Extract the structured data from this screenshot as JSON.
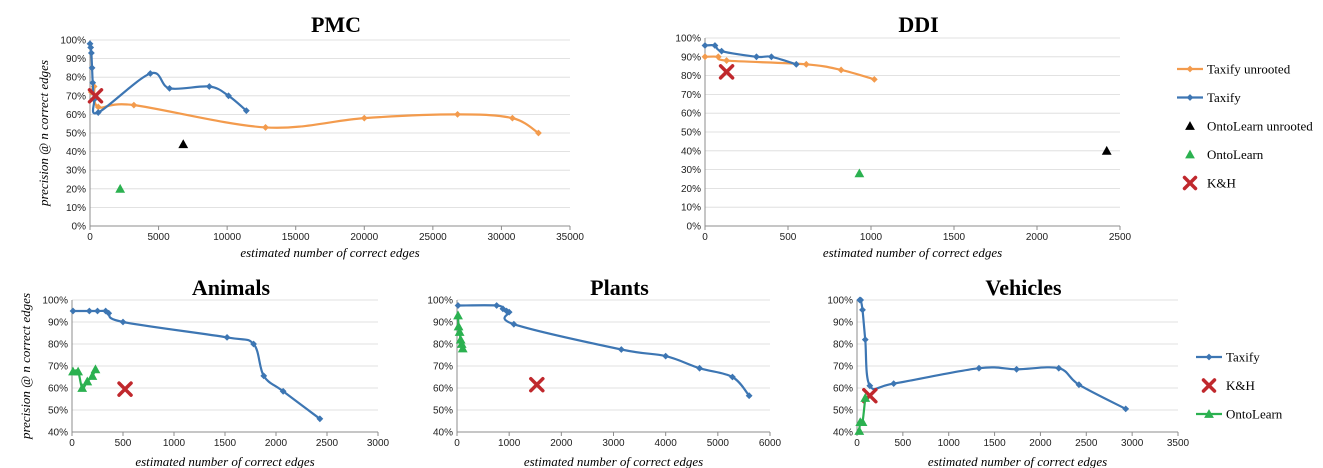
{
  "chart_data": [
    {
      "id": "pmc",
      "type": "scatter",
      "title": "PMC",
      "xlabel": "estimated number of correct edges",
      "ylabel": "precision @ n correct edges",
      "xlim": [
        0,
        35000
      ],
      "ylim": [
        0,
        1
      ],
      "xticks": [
        0,
        5000,
        10000,
        15000,
        20000,
        25000,
        30000,
        35000
      ],
      "xtick_labels": [
        "0",
        "5000",
        "10000",
        "15000",
        "20000",
        "25000",
        "30000",
        "35000"
      ],
      "yticks": [
        0,
        0.1,
        0.2,
        0.3,
        0.4,
        0.5,
        0.6,
        0.7,
        0.8,
        0.9,
        1.0
      ],
      "ytick_labels": [
        "0%",
        "10%",
        "20%",
        "30%",
        "40%",
        "50%",
        "60%",
        "70%",
        "80%",
        "90%",
        "100%"
      ],
      "series": [
        {
          "name": "Taxify unrooted",
          "color": "#f39b4d",
          "marker": "diamond",
          "line": true,
          "x": [
            100,
            300,
            600,
            3200,
            12800,
            20000,
            26800,
            30800,
            32700
          ],
          "y": [
            0.72,
            0.75,
            0.64,
            0.65,
            0.53,
            0.58,
            0.6,
            0.58,
            0.5
          ]
        },
        {
          "name": "Taxify",
          "color": "#3d76b3",
          "marker": "diamond",
          "line": true,
          "x": [
            0,
            50,
            100,
            150,
            200,
            300,
            600,
            4400,
            5800,
            8700,
            10100,
            11400
          ],
          "y": [
            0.98,
            0.96,
            0.93,
            0.85,
            0.77,
            0.68,
            0.61,
            0.82,
            0.74,
            0.75,
            0.7,
            0.62
          ]
        },
        {
          "name": "OntoLearn unrooted",
          "color": "#000000",
          "marker": "triangle",
          "line": false,
          "x": [
            6800
          ],
          "y": [
            0.44
          ]
        },
        {
          "name": "OntoLearn",
          "color": "#2bb150",
          "marker": "triangle",
          "line": false,
          "x": [
            2200
          ],
          "y": [
            0.2
          ]
        },
        {
          "name": "K&H",
          "color": "#c0282d",
          "marker": "x",
          "line": false,
          "x": [
            400
          ],
          "y": [
            0.7
          ]
        }
      ]
    },
    {
      "id": "ddi",
      "type": "scatter",
      "title": "DDI",
      "xlabel": "estimated number of correct edges",
      "ylabel": "",
      "xlim": [
        0,
        2500
      ],
      "ylim": [
        0,
        1
      ],
      "xticks": [
        0,
        500,
        1000,
        1500,
        2000,
        2500
      ],
      "xtick_labels": [
        "0",
        "500",
        "1000",
        "1500",
        "2000",
        "2500"
      ],
      "yticks": [
        0,
        0.1,
        0.2,
        0.3,
        0.4,
        0.5,
        0.6,
        0.7,
        0.8,
        0.9,
        1.0
      ],
      "ytick_labels": [
        "0%",
        "10%",
        "20%",
        "30%",
        "40%",
        "50%",
        "60%",
        "70%",
        "80%",
        "90%",
        "100%"
      ],
      "series": [
        {
          "name": "Taxify unrooted",
          "color": "#f39b4d",
          "marker": "diamond",
          "line": true,
          "x": [
            0,
            80,
            130,
            610,
            820,
            1020
          ],
          "y": [
            0.9,
            0.9,
            0.88,
            0.86,
            0.83,
            0.78
          ]
        },
        {
          "name": "Taxify",
          "color": "#3d76b3",
          "marker": "diamond",
          "line": true,
          "x": [
            0,
            60,
            100,
            310,
            400,
            550
          ],
          "y": [
            0.96,
            0.96,
            0.93,
            0.9,
            0.9,
            0.86
          ]
        },
        {
          "name": "OntoLearn unrooted",
          "color": "#000000",
          "marker": "triangle",
          "line": false,
          "x": [
            2420
          ],
          "y": [
            0.4
          ]
        },
        {
          "name": "OntoLearn",
          "color": "#2bb150",
          "marker": "triangle",
          "line": false,
          "x": [
            930
          ],
          "y": [
            0.28
          ]
        },
        {
          "name": "K&H",
          "color": "#c0282d",
          "marker": "x",
          "line": false,
          "x": [
            130
          ],
          "y": [
            0.82
          ]
        }
      ]
    },
    {
      "id": "animals",
      "type": "line",
      "title": "Animals",
      "xlabel": "estimated number of correct edges",
      "ylabel": "precision @ n correct edges",
      "xlim": [
        0,
        3000
      ],
      "ylim": [
        0.4,
        1
      ],
      "xticks": [
        0,
        500,
        1000,
        1500,
        2000,
        2500,
        3000
      ],
      "xtick_labels": [
        "0",
        "500",
        "1000",
        "1500",
        "2000",
        "2500",
        "3000"
      ],
      "yticks": [
        0.4,
        0.5,
        0.6,
        0.7,
        0.8,
        0.9,
        1.0
      ],
      "ytick_labels": [
        "40%",
        "50%",
        "60%",
        "70%",
        "80%",
        "90%",
        "100%"
      ],
      "series": [
        {
          "name": "Taxify",
          "color": "#3d76b3",
          "marker": "diamond",
          "line": true,
          "x": [
            10,
            170,
            250,
            330,
            360,
            500,
            1520,
            1780,
            1880,
            2070,
            2430
          ],
          "y": [
            0.95,
            0.95,
            0.95,
            0.95,
            0.94,
            0.9,
            0.83,
            0.8,
            0.655,
            0.585,
            0.46
          ]
        },
        {
          "name": "K&H",
          "color": "#c0282d",
          "marker": "x",
          "line": false,
          "x": [
            520
          ],
          "y": [
            0.595
          ]
        },
        {
          "name": "OntoLearn",
          "color": "#2bb150",
          "marker": "triangle",
          "line": true,
          "x": [
            10,
            60,
            100,
            150,
            200,
            230
          ],
          "y": [
            0.675,
            0.675,
            0.6,
            0.63,
            0.655,
            0.685
          ]
        }
      ]
    },
    {
      "id": "plants",
      "type": "line",
      "title": "Plants",
      "xlabel": "estimated number of correct edges",
      "ylabel": "",
      "xlim": [
        0,
        6000
      ],
      "ylim": [
        0.4,
        1
      ],
      "xticks": [
        0,
        1000,
        2000,
        3000,
        4000,
        5000,
        6000
      ],
      "xtick_labels": [
        "0",
        "1000",
        "2000",
        "3000",
        "4000",
        "5000",
        "6000"
      ],
      "yticks": [
        0.4,
        0.5,
        0.6,
        0.7,
        0.8,
        0.9,
        1.0
      ],
      "ytick_labels": [
        "40%",
        "50%",
        "60%",
        "70%",
        "80%",
        "90%",
        "100%"
      ],
      "series": [
        {
          "name": "Taxify",
          "color": "#3d76b3",
          "marker": "diamond",
          "line": true,
          "x": [
            20,
            760,
            880,
            950,
            1000,
            1090,
            3150,
            4000,
            4650,
            5280,
            5600
          ],
          "y": [
            0.975,
            0.975,
            0.96,
            0.95,
            0.945,
            0.89,
            0.775,
            0.745,
            0.69,
            0.65,
            0.565
          ]
        },
        {
          "name": "K&H",
          "color": "#c0282d",
          "marker": "x",
          "line": false,
          "x": [
            1530
          ],
          "y": [
            0.615
          ]
        },
        {
          "name": "OntoLearn",
          "color": "#2bb150",
          "marker": "triangle",
          "line": true,
          "x": [
            20,
            30,
            50,
            70,
            90,
            110
          ],
          "y": [
            0.93,
            0.88,
            0.855,
            0.82,
            0.8,
            0.78
          ]
        }
      ]
    },
    {
      "id": "vehicles",
      "type": "line",
      "title": "Vehicles",
      "xlabel": "estimated number of correct edges",
      "ylabel": "",
      "xlim": [
        0,
        3500
      ],
      "ylim": [
        0.4,
        1
      ],
      "xticks": [
        0,
        500,
        1000,
        1500,
        2000,
        2500,
        3000,
        3500
      ],
      "xtick_labels": [
        "0",
        "500",
        "1000",
        "1500",
        "2000",
        "2500",
        "3000",
        "3500"
      ],
      "yticks": [
        0.4,
        0.5,
        0.6,
        0.7,
        0.8,
        0.9,
        1.0
      ],
      "ytick_labels": [
        "40%",
        "50%",
        "60%",
        "70%",
        "80%",
        "90%",
        "100%"
      ],
      "series": [
        {
          "name": "Taxify",
          "color": "#3d76b3",
          "marker": "diamond",
          "line": true,
          "x": [
            30,
            40,
            60,
            90,
            140,
            400,
            1330,
            1740,
            2200,
            2420,
            2930
          ],
          "y": [
            1.0,
            1.0,
            0.955,
            0.82,
            0.61,
            0.62,
            0.69,
            0.685,
            0.69,
            0.615,
            0.505
          ]
        },
        {
          "name": "K&H",
          "color": "#c0282d",
          "marker": "x",
          "line": false,
          "x": [
            140
          ],
          "y": [
            0.565
          ]
        },
        {
          "name": "OntoLearn",
          "color": "#2bb150",
          "marker": "triangle",
          "line": true,
          "x": [
            25,
            35,
            60,
            90
          ],
          "y": [
            0.405,
            0.445,
            0.445,
            0.555
          ]
        }
      ]
    }
  ],
  "legends": {
    "top": [
      {
        "label": "Taxify unrooted",
        "color": "#f39b4d",
        "marker": "diamond",
        "line": true
      },
      {
        "label": "Taxify",
        "color": "#3d76b3",
        "marker": "diamond",
        "line": true
      },
      {
        "label": "OntoLearn unrooted",
        "color": "#000000",
        "marker": "triangle",
        "line": false
      },
      {
        "label": "OntoLearn",
        "color": "#2bb150",
        "marker": "triangle",
        "line": false
      },
      {
        "label": "K&H",
        "color": "#c0282d",
        "marker": "x",
        "line": false
      }
    ],
    "bottom": [
      {
        "label": "Taxify",
        "color": "#3d76b3",
        "marker": "diamond",
        "line": true
      },
      {
        "label": "K&H",
        "color": "#c0282d",
        "marker": "x",
        "line": false
      },
      {
        "label": "OntoLearn",
        "color": "#2bb150",
        "marker": "triangle",
        "line": true
      }
    ]
  },
  "colors": {
    "gridline": "#d9d9d9",
    "axis": "#8c8c8c"
  }
}
